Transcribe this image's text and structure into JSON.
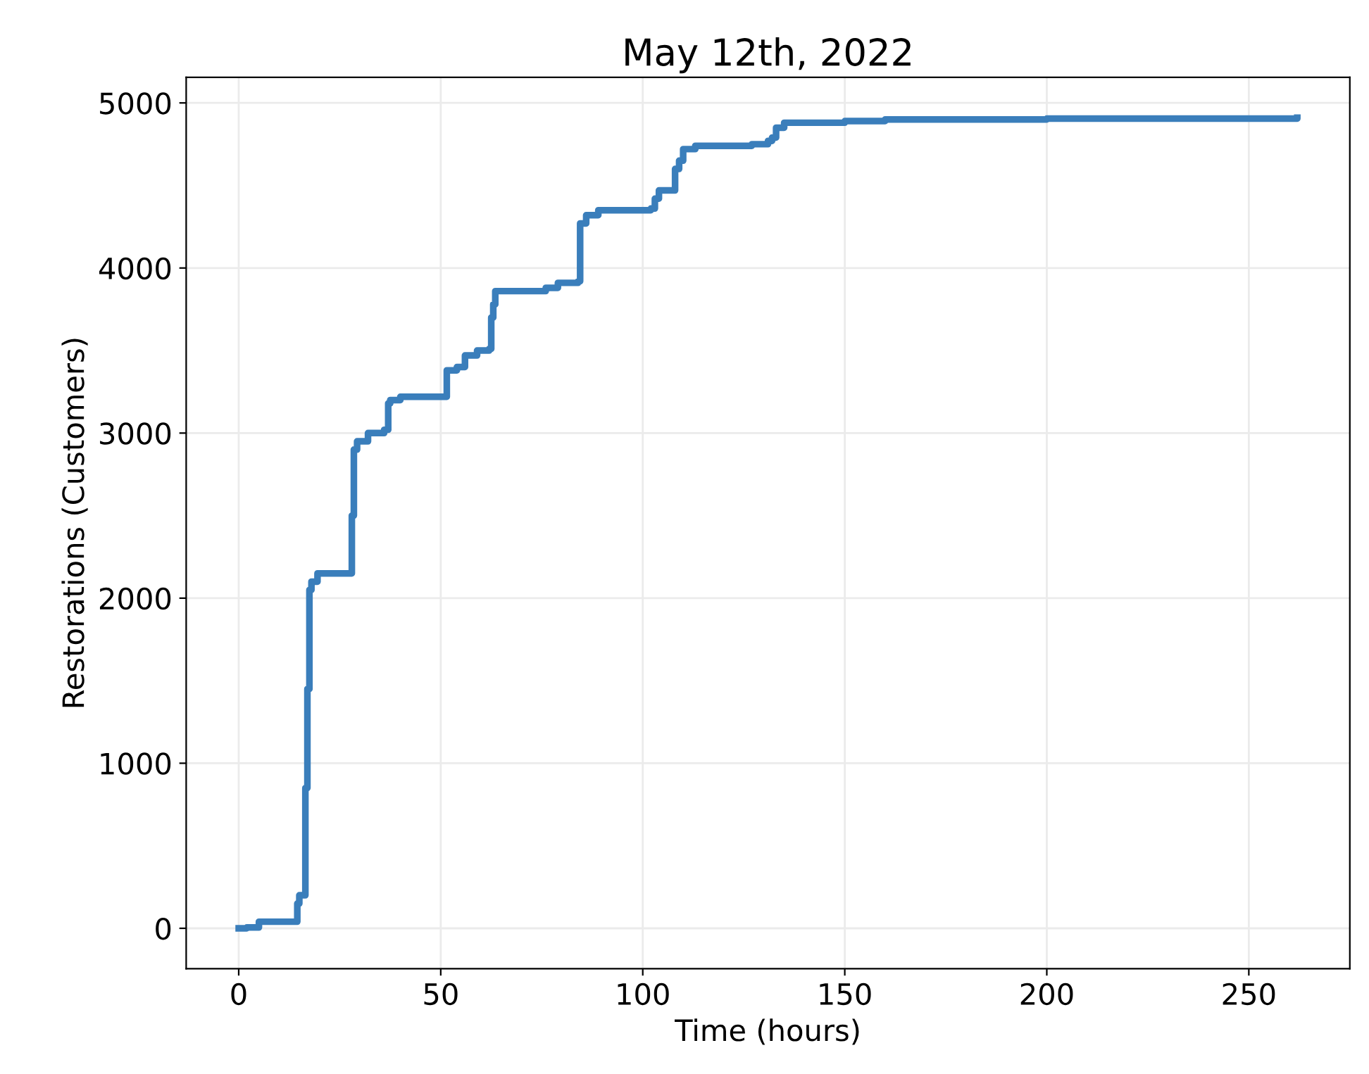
{
  "chart_data": {
    "type": "step",
    "title": "May 12th, 2022",
    "xlabel": "Time (hours)",
    "ylabel": "Restorations (Customers)",
    "series": [
      {
        "color": "#3a7ebb",
        "x": [
          0,
          2,
          5,
          14.5,
          15,
          16.5,
          17,
          17.5,
          18,
          19.5,
          28,
          28.5,
          29.3,
          32,
          36,
          37,
          37.5,
          40,
          51.5,
          54,
          56,
          59,
          62,
          62.5,
          63,
          63.5,
          76,
          79,
          84,
          84.5,
          86,
          89,
          102,
          103,
          104,
          108,
          109,
          110,
          113,
          127,
          131,
          132,
          133,
          135,
          150,
          160,
          200,
          262
        ],
        "values": [
          0,
          5,
          40,
          150,
          200,
          850,
          1450,
          2050,
          2100,
          2150,
          2500,
          2900,
          2950,
          3000,
          3020,
          3180,
          3200,
          3220,
          3380,
          3400,
          3470,
          3500,
          3510,
          3700,
          3780,
          3860,
          3880,
          3910,
          3920,
          4270,
          4320,
          4350,
          4360,
          4420,
          4470,
          4600,
          4650,
          4720,
          4740,
          4750,
          4770,
          4790,
          4850,
          4880,
          4890,
          4900,
          4905,
          4910
        ]
      }
    ],
    "xlim": [
      -13,
      275
    ],
    "xticks": [
      0,
      50,
      100,
      150,
      200,
      250
    ],
    "ylim": [
      -245,
      5155
    ],
    "yticks": [
      0,
      1000,
      2000,
      3000,
      4000,
      5000
    ],
    "grid": true,
    "legend": false,
    "line_style": "solid",
    "marker": "none"
  }
}
